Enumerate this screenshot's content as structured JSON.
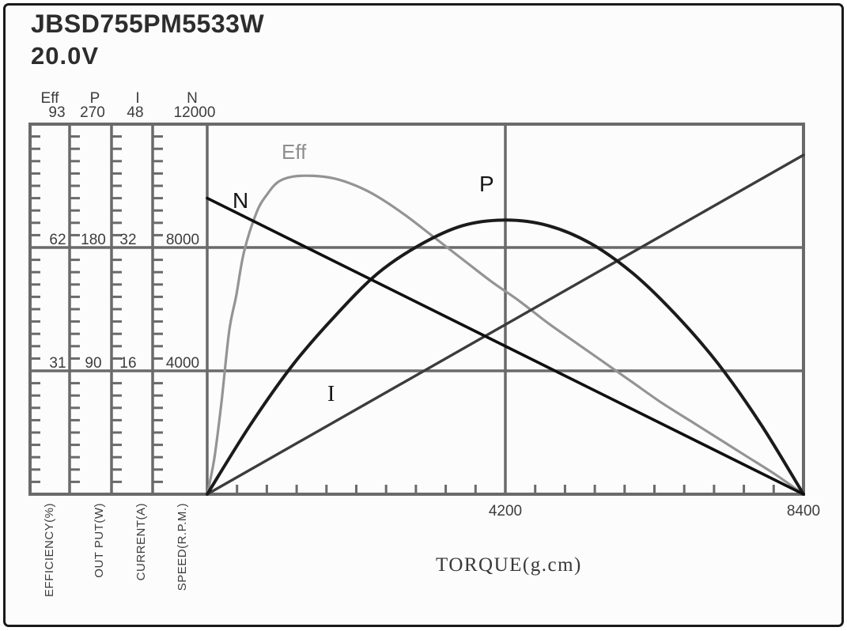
{
  "chart_data": {
    "type": "line",
    "title": "JBSD755PM5533W",
    "subtitle": "20.0V",
    "xlabel": "TORQUE(g.cm)",
    "x_axis": {
      "min": 0,
      "max": 8400,
      "tick_labels": [
        "4200",
        "8400"
      ],
      "minor_divisions": 20
    },
    "grid": true,
    "legend_position": "inline-labels",
    "scales": [
      {
        "id": "eff",
        "name": "Eff",
        "axis_label": "EFFICIENCY(%)",
        "max": "93",
        "max_value": 93,
        "gridline_values": [
          "62",
          "31"
        ]
      },
      {
        "id": "p",
        "name": "P",
        "axis_label": "OUT PUT(W)",
        "max": "270",
        "max_value": 270,
        "gridline_values": [
          "180",
          "90"
        ]
      },
      {
        "id": "i",
        "name": "I",
        "axis_label": "CURRENT(A)",
        "max": "48",
        "max_value": 48,
        "gridline_values": [
          "32",
          "16"
        ]
      },
      {
        "id": "n",
        "name": "N",
        "axis_label": "SPEED(R.P.M.)",
        "max": "12000",
        "max_value": 12000,
        "gridline_values": [
          "8000",
          "4000"
        ]
      }
    ],
    "curve_labels": {
      "eff": "Eff",
      "n": "N",
      "p": "P",
      "i": "I"
    },
    "series": [
      {
        "name": "Eff",
        "scale": "eff",
        "color": "#949494",
        "stroke_width": 3.2,
        "smooth": true,
        "points": [
          [
            0,
            0
          ],
          [
            100,
            9
          ],
          [
            200,
            23
          ],
          [
            310,
            41
          ],
          [
            410,
            50
          ],
          [
            520,
            61
          ],
          [
            700,
            71
          ],
          [
            850,
            75.5
          ],
          [
            1000,
            78.5
          ],
          [
            1200,
            79.8
          ],
          [
            1500,
            80
          ],
          [
            1800,
            79.3
          ],
          [
            2100,
            77.5
          ],
          [
            2400,
            74.8
          ],
          [
            2800,
            70
          ],
          [
            3200,
            64.5
          ],
          [
            3600,
            59
          ],
          [
            4000,
            53.5
          ],
          [
            4400,
            48.5
          ],
          [
            4800,
            43
          ],
          [
            5200,
            38
          ],
          [
            5600,
            33
          ],
          [
            6000,
            28
          ],
          [
            6400,
            23
          ],
          [
            6800,
            18.5
          ],
          [
            7200,
            14
          ],
          [
            7600,
            9.5
          ],
          [
            8000,
            5
          ],
          [
            8400,
            0
          ]
        ]
      },
      {
        "name": "I",
        "scale": "i",
        "color": "#3c3c3c",
        "stroke_width": 3.4,
        "smooth": false,
        "points": [
          [
            0,
            0
          ],
          [
            8400,
            44
          ]
        ]
      },
      {
        "name": "P",
        "scale": "p",
        "color": "#1b1b1b",
        "stroke_width": 4,
        "smooth": true,
        "points": [
          [
            0,
            0
          ],
          [
            600,
            50
          ],
          [
            1200,
            94
          ],
          [
            1800,
            130
          ],
          [
            2400,
            161
          ],
          [
            3000,
            182
          ],
          [
            3600,
            196
          ],
          [
            4200,
            200
          ],
          [
            4800,
            196
          ],
          [
            5400,
            183
          ],
          [
            6000,
            161
          ],
          [
            6600,
            131
          ],
          [
            7200,
            95
          ],
          [
            7800,
            51
          ],
          [
            8400,
            0
          ]
        ]
      },
      {
        "name": "N",
        "scale": "n",
        "color": "#101010",
        "stroke_width": 3.6,
        "smooth": false,
        "points": [
          [
            0,
            9600
          ],
          [
            8400,
            0
          ]
        ]
      }
    ]
  },
  "colors": {
    "grid": "#6a6a6a",
    "axis_text": "#3d3d3d",
    "frame": "#191919",
    "background": "#fcfcfc"
  }
}
